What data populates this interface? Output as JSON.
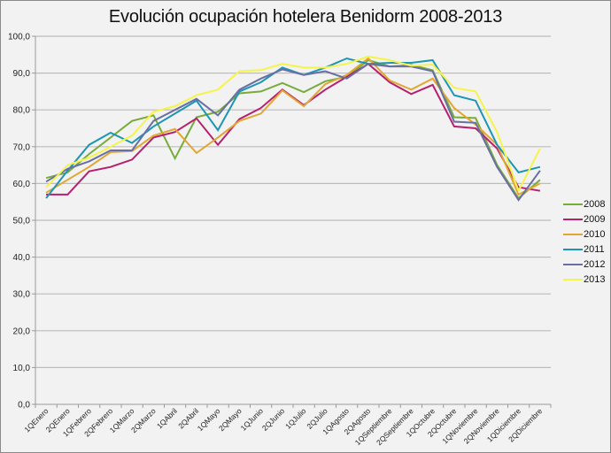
{
  "chart_data": {
    "type": "line",
    "title": "Evolución ocupación hotelera Benidorm 2008-2013",
    "xlabel": "",
    "ylabel": "",
    "ylim": [
      0,
      100
    ],
    "yticks": [
      "0,0",
      "10,0",
      "20,0",
      "30,0",
      "40,0",
      "50,0",
      "60,0",
      "70,0",
      "80,0",
      "90,0",
      "100,0"
    ],
    "grid": true,
    "legend_position": "right",
    "categories": [
      "1QEnero",
      "2QEnero",
      "1QFebrero",
      "2QFebrero",
      "1QMarzo",
      "2QMarzo",
      "1QAbril",
      "2QAbril",
      "1QMayo",
      "2QMayo",
      "1QJunio",
      "2QJunio",
      "1QJulio",
      "2QJulio",
      "1QAgosto",
      "2QAgosto",
      "1QSeptiembre",
      "2QSeptiembre",
      "1QOctubre",
      "2QOctubre",
      "1QNoviembre",
      "2QNoviembre",
      "1QDiciembre",
      "2QDiciembre"
    ],
    "series": [
      {
        "name": "2008",
        "color": "#77ac3b",
        "values": [
          61.5,
          63.0,
          68.0,
          72.5,
          77.0,
          78.5,
          66.8,
          78.0,
          79.5,
          84.5,
          85.0,
          87.3,
          84.8,
          87.8,
          89.0,
          93.5,
          91.8,
          92.2,
          90.8,
          78.0,
          77.8,
          65.0,
          56.0,
          61.0
        ]
      },
      {
        "name": "2009",
        "color": "#b5206f",
        "values": [
          57.0,
          57.0,
          63.3,
          64.5,
          66.5,
          72.5,
          74.0,
          77.7,
          70.5,
          77.5,
          80.5,
          85.5,
          81.3,
          85.5,
          89.0,
          92.5,
          87.5,
          84.3,
          86.8,
          75.5,
          75.0,
          69.5,
          59.0,
          58.0
        ]
      },
      {
        "name": "2010",
        "color": "#e1a732",
        "values": [
          57.5,
          61.0,
          64.5,
          68.5,
          68.8,
          73.0,
          74.8,
          68.3,
          72.5,
          77.0,
          79.0,
          85.3,
          81.0,
          87.0,
          89.5,
          94.0,
          88.0,
          85.5,
          88.5,
          80.5,
          76.0,
          70.5,
          57.0,
          60.0
        ]
      },
      {
        "name": "2011",
        "color": "#1d95b4",
        "values": [
          56.0,
          63.5,
          70.5,
          73.8,
          71.0,
          75.5,
          79.0,
          82.5,
          74.5,
          85.0,
          87.5,
          91.5,
          89.5,
          91.5,
          94.0,
          92.5,
          92.8,
          92.8,
          93.5,
          84.0,
          82.5,
          70.5,
          63.0,
          64.5
        ]
      },
      {
        "name": "2012",
        "color": "#6a6fa3",
        "values": [
          60.5,
          64.0,
          66.0,
          69.0,
          69.0,
          77.0,
          80.0,
          83.0,
          78.5,
          85.5,
          88.5,
          91.0,
          89.5,
          90.5,
          88.5,
          92.5,
          91.8,
          91.8,
          90.5,
          76.8,
          76.5,
          64.5,
          55.5,
          63.5
        ]
      },
      {
        "name": "2013",
        "color": "#f4f44a",
        "values": [
          59.0,
          65.0,
          67.0,
          70.0,
          73.0,
          79.5,
          81.0,
          84.0,
          85.5,
          90.5,
          90.8,
          92.5,
          91.5,
          91.5,
          92.5,
          94.5,
          93.5,
          92.0,
          92.3,
          86.0,
          85.0,
          74.0,
          58.0,
          69.5
        ]
      }
    ]
  }
}
